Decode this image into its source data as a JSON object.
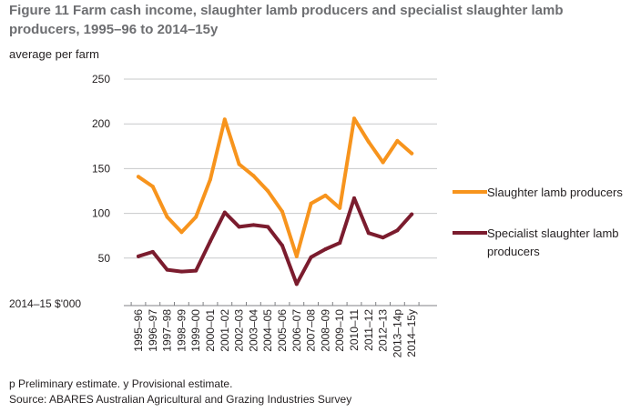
{
  "figure": {
    "title": "Figure 11 Farm cash income, slaughter lamb producers and specialist slaughter lamb producers, 1995–96 to 2014–15y",
    "ylabel": "average per farm",
    "unit": "2014–15 $'000",
    "note": "p Preliminary estimate. y Provisional estimate.",
    "source": "Source: ABARES Australian Agricultural and Grazing Industries Survey"
  },
  "chart_data": {
    "type": "line",
    "title": "Figure 11 Farm cash income, slaughter lamb producers and specialist slaughter lamb producers, 1995–96 to 2014–15y",
    "xlabel": "",
    "ylabel": "average per farm",
    "unit": "2014–15 $'000",
    "ylim": [
      0,
      250
    ],
    "yticks": [
      50,
      100,
      150,
      200,
      250
    ],
    "grid": true,
    "legend_position": "right",
    "categories": [
      "1995–96",
      "1996–97",
      "1997–98",
      "1998–99",
      "1999–00",
      "2000–01",
      "2001–02",
      "2002–03",
      "2003–04",
      "2004–05",
      "2005–06",
      "2006–07",
      "2007–08",
      "2008–09",
      "2009–10",
      "2010–11",
      "2011–12",
      "2012–13",
      "2013–14p",
      "2014–15y"
    ],
    "series": [
      {
        "name": "Slaughter lamb producers",
        "color": "#f7941d",
        "values": [
          141,
          130,
          96,
          79,
          96,
          138,
          205,
          155,
          142,
          125,
          102,
          52,
          111,
          120,
          106,
          206,
          180,
          157,
          181,
          167
        ]
      },
      {
        "name": "Specialist slaughter lamb producers",
        "color": "#7b1c2e",
        "values": [
          52,
          57,
          37,
          35,
          36,
          69,
          101,
          85,
          87,
          85,
          64,
          21,
          51,
          60,
          67,
          117,
          78,
          73,
          81,
          99
        ]
      }
    ]
  }
}
